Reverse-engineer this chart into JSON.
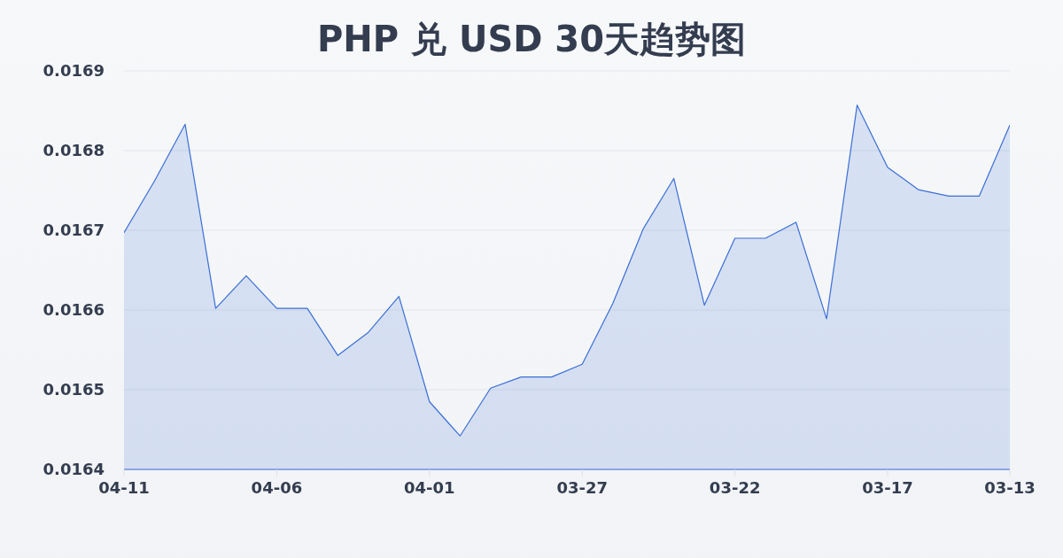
{
  "chart_data": {
    "type": "area",
    "title": "PHP 兑 USD 30天趋势图",
    "categories": [
      "04-11",
      null,
      null,
      null,
      null,
      "04-06",
      null,
      null,
      null,
      null,
      "04-01",
      null,
      null,
      null,
      null,
      "03-27",
      null,
      null,
      null,
      null,
      "03-22",
      null,
      null,
      null,
      null,
      "03-17",
      null,
      null,
      null,
      "03-13"
    ],
    "values": [
      0.016697,
      0.016762,
      0.016833,
      0.016602,
      0.016643,
      0.016602,
      0.016602,
      0.016543,
      0.016572,
      0.016617,
      0.016485,
      0.016442,
      0.016502,
      0.016516,
      0.016516,
      0.016532,
      0.016608,
      0.016702,
      0.016765,
      0.016606,
      0.01669,
      0.01669,
      0.01671,
      0.016589,
      0.016857,
      0.016779,
      0.016751,
      0.016743,
      0.016743,
      0.016832
    ],
    "color": "#3b6fd4",
    "ylim": [
      0.0164,
      0.0169
    ],
    "yticks": [
      0.0164,
      0.0165,
      0.0166,
      0.0167,
      0.0168,
      0.0169
    ],
    "grid": "y"
  }
}
